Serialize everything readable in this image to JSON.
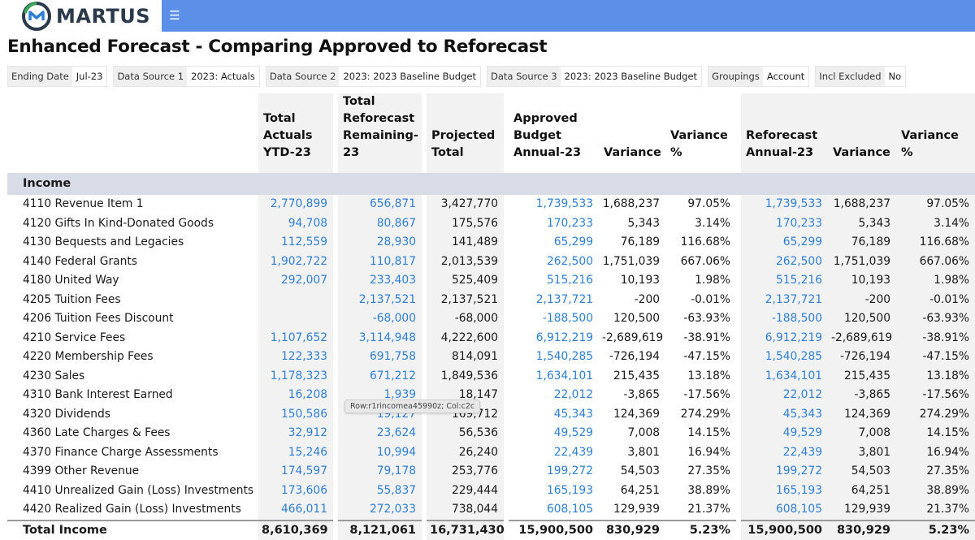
{
  "brand": {
    "name": "MARTUS",
    "colors": {
      "blue": "#2f7fd4",
      "navy": "#2b3a4a",
      "green": "#3aa65a",
      "bar": "#5b8fe8"
    }
  },
  "nav": {
    "menu_icon": "☰"
  },
  "title": "Enhanced Forecast - Comparing Approved to Reforecast",
  "filters": [
    {
      "label": "Ending Date",
      "value": "Jul-23"
    },
    {
      "label": "Data Source 1",
      "value": "2023: Actuals"
    },
    {
      "label": "Data Source 2",
      "value": "2023: 2023 Baseline Budget"
    },
    {
      "label": "Data Source 3",
      "value": "2023: 2023 Baseline Budget"
    },
    {
      "label": "Groupings",
      "value": "Account"
    },
    {
      "label": "Incl Excluded",
      "value": "No"
    }
  ],
  "headers": {
    "name": "",
    "actuals": [
      "Total",
      "Actuals",
      "YTD-23"
    ],
    "reforecast_remaining": [
      "Total",
      "Reforecast",
      "Remaining-",
      "23"
    ],
    "projected": [
      "Projected",
      "Total"
    ],
    "approved": [
      "Approved",
      "Budget",
      "Annual-23"
    ],
    "variance1": [
      "Variance"
    ],
    "variance_pct1": [
      "Variance",
      "%"
    ],
    "reforecast_annual": [
      "Reforecast",
      "Annual-23"
    ],
    "variance2": [
      "Variance"
    ],
    "variance_pct2": [
      "Variance",
      "%"
    ]
  },
  "section": "Income",
  "rows": [
    {
      "name": "4110 Revenue Item 1",
      "actuals": "2,770,899",
      "remaining": "656,871",
      "projected": "3,427,770",
      "approved": "1,739,533",
      "var1": "1,688,237",
      "pct1": "97.05%",
      "reforecast": "1,739,533",
      "var2": "1,688,237",
      "pct2": "97.05%"
    },
    {
      "name": "4120 Gifts In Kind-Donated Goods",
      "actuals": "94,708",
      "remaining": "80,867",
      "projected": "175,576",
      "approved": "170,233",
      "var1": "5,343",
      "pct1": "3.14%",
      "reforecast": "170,233",
      "var2": "5,343",
      "pct2": "3.14%"
    },
    {
      "name": "4130 Bequests and Legacies",
      "actuals": "112,559",
      "remaining": "28,930",
      "projected": "141,489",
      "approved": "65,299",
      "var1": "76,189",
      "pct1": "116.68%",
      "reforecast": "65,299",
      "var2": "76,189",
      "pct2": "116.68%"
    },
    {
      "name": "4140 Federal Grants",
      "actuals": "1,902,722",
      "remaining": "110,817",
      "projected": "2,013,539",
      "approved": "262,500",
      "var1": "1,751,039",
      "pct1": "667.06%",
      "reforecast": "262,500",
      "var2": "1,751,039",
      "pct2": "667.06%"
    },
    {
      "name": "4180 United Way",
      "actuals": "292,007",
      "remaining": "233,403",
      "projected": "525,409",
      "approved": "515,216",
      "var1": "10,193",
      "pct1": "1.98%",
      "reforecast": "515,216",
      "var2": "10,193",
      "pct2": "1.98%"
    },
    {
      "name": "4205 Tuition Fees",
      "actuals": "",
      "remaining": "2,137,521",
      "projected": "2,137,521",
      "approved": "2,137,721",
      "var1": "-200",
      "pct1": "-0.01%",
      "reforecast": "2,137,721",
      "var2": "-200",
      "pct2": "-0.01%"
    },
    {
      "name": "4206 Tuition Fees Discount",
      "actuals": "",
      "remaining": "-68,000",
      "projected": "-68,000",
      "approved": "-188,500",
      "var1": "120,500",
      "pct1": "-63.93%",
      "reforecast": "-188,500",
      "var2": "120,500",
      "pct2": "-63.93%"
    },
    {
      "name": "4210 Service Fees",
      "actuals": "1,107,652",
      "remaining": "3,114,948",
      "projected": "4,222,600",
      "approved": "6,912,219",
      "var1": "-2,689,619",
      "pct1": "-38.91%",
      "reforecast": "6,912,219",
      "var2": "-2,689,619",
      "pct2": "-38.91%"
    },
    {
      "name": "4220 Membership Fees",
      "actuals": "122,333",
      "remaining": "691,758",
      "projected": "814,091",
      "approved": "1,540,285",
      "var1": "-726,194",
      "pct1": "-47.15%",
      "reforecast": "1,540,285",
      "var2": "-726,194",
      "pct2": "-47.15%"
    },
    {
      "name": "4230 Sales",
      "actuals": "1,178,323",
      "remaining": "671,212",
      "projected": "1,849,536",
      "approved": "1,634,101",
      "var1": "215,435",
      "pct1": "13.18%",
      "reforecast": "1,634,101",
      "var2": "215,435",
      "pct2": "13.18%"
    },
    {
      "name": "4310 Bank Interest Earned",
      "actuals": "16,208",
      "remaining": "1,939",
      "projected": "18,147",
      "approved": "22,012",
      "var1": "-3,865",
      "pct1": "-17.56%",
      "reforecast": "22,012",
      "var2": "-3,865",
      "pct2": "-17.56%"
    },
    {
      "name": "4320 Dividends",
      "actuals": "150,586",
      "remaining": "19,127",
      "projected": "169,712",
      "approved": "45,343",
      "var1": "124,369",
      "pct1": "274.29%",
      "reforecast": "45,343",
      "var2": "124,369",
      "pct2": "274.29%"
    },
    {
      "name": "4360 Late Charges & Fees",
      "actuals": "32,912",
      "remaining": "23,624",
      "projected": "56,536",
      "approved": "49,529",
      "var1": "7,008",
      "pct1": "14.15%",
      "reforecast": "49,529",
      "var2": "7,008",
      "pct2": "14.15%"
    },
    {
      "name": "4370 Finance Charge Assessments",
      "actuals": "15,246",
      "remaining": "10,994",
      "projected": "26,240",
      "approved": "22,439",
      "var1": "3,801",
      "pct1": "16.94%",
      "reforecast": "22,439",
      "var2": "3,801",
      "pct2": "16.94%"
    },
    {
      "name": "4399 Other Revenue",
      "actuals": "174,597",
      "remaining": "79,178",
      "projected": "253,776",
      "approved": "199,272",
      "var1": "54,503",
      "pct1": "27.35%",
      "reforecast": "199,272",
      "var2": "54,503",
      "pct2": "27.35%"
    },
    {
      "name": "4410 Unrealized Gain (Loss) Investments",
      "actuals": "173,606",
      "remaining": "55,837",
      "projected": "229,444",
      "approved": "165,193",
      "var1": "64,251",
      "pct1": "38.89%",
      "reforecast": "165,193",
      "var2": "64,251",
      "pct2": "38.89%"
    },
    {
      "name": "4420 Realized Gain (Loss) Investments",
      "actuals": "466,011",
      "remaining": "272,033",
      "projected": "738,044",
      "approved": "608,105",
      "var1": "129,939",
      "pct1": "21.37%",
      "reforecast": "608,105",
      "var2": "129,939",
      "pct2": "21.37%"
    }
  ],
  "total": {
    "name": "Total Income",
    "actuals": "8,610,369",
    "remaining": "8,121,061",
    "projected": "16,731,430",
    "approved": "15,900,500",
    "var1": "830,929",
    "pct1": "5.23%",
    "reforecast": "15,900,500",
    "var2": "830,929",
    "pct2": "5.23%"
  },
  "tooltip": "Row:r1rincomea45990z; Col:c2c"
}
